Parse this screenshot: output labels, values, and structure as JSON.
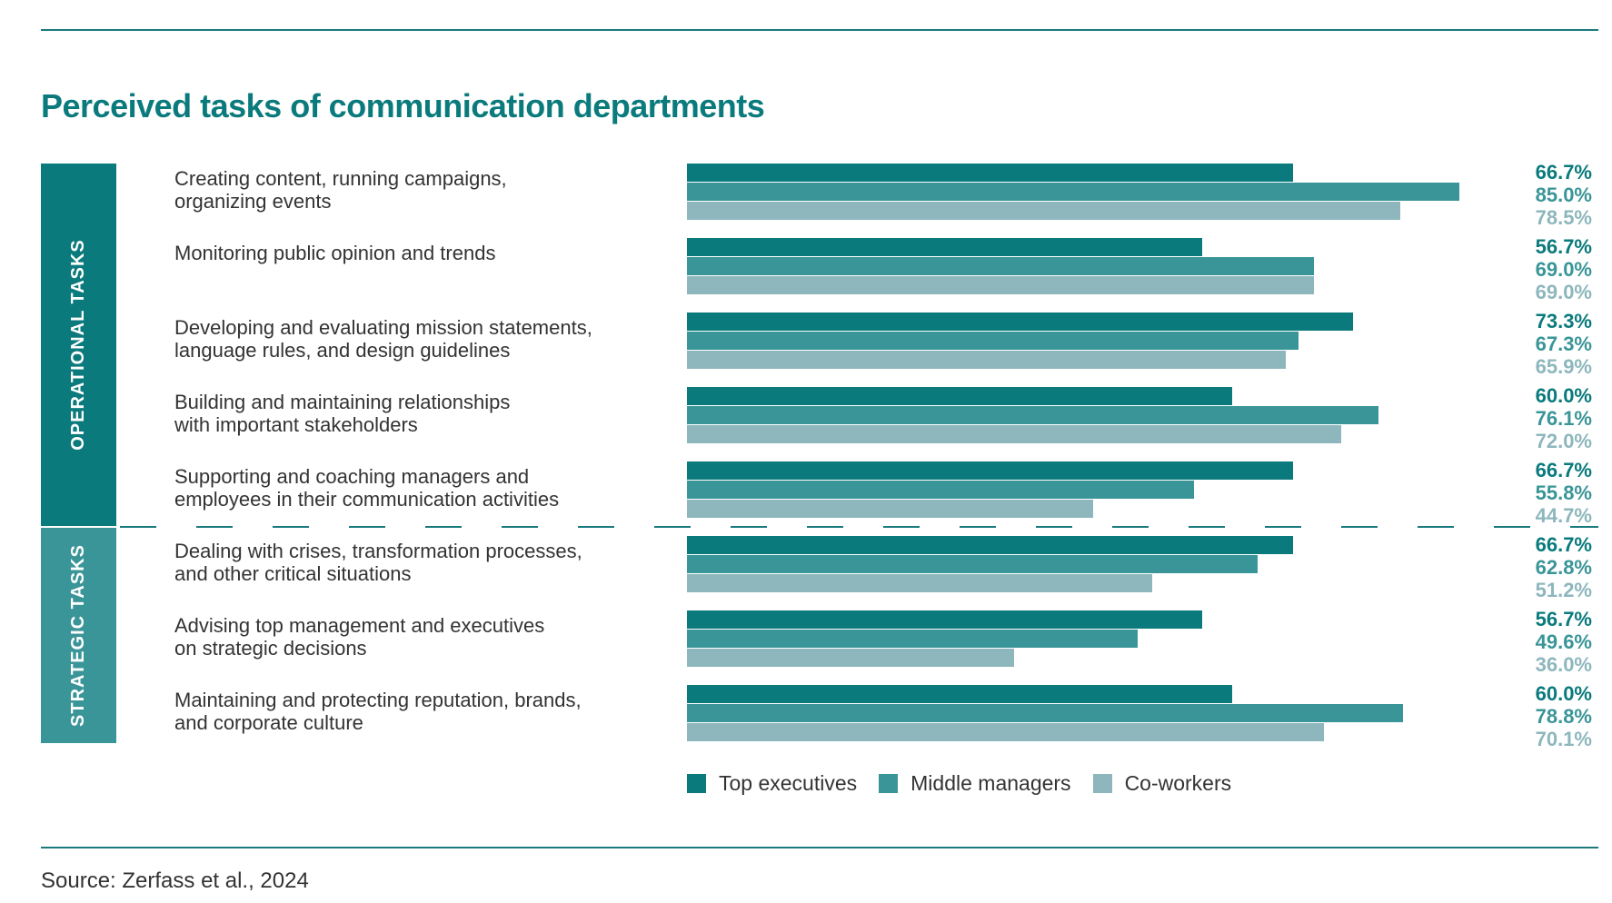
{
  "chart_data": {
    "type": "bar",
    "orientation": "horizontal",
    "title": "Perceived tasks of communication departments",
    "source": "Source: Zerfass et al., 2024",
    "sections": [
      {
        "label": "OPERATIONAL TASKS",
        "categories": [
          0,
          1,
          2,
          3,
          4
        ],
        "color": "#0a7a7c"
      },
      {
        "label": "STRATEGIC TASKS",
        "categories": [
          5,
          6,
          7
        ],
        "color": "#3a9598"
      }
    ],
    "categories": [
      "Creating content, running campaigns,\norganizing events",
      "Monitoring public opinion and trends",
      "Developing and evaluating mission statements,\nlanguage rules, and design guidelines",
      "Building and maintaining relationships\nwith important stakeholders",
      "Supporting and coaching managers and\nemployees in their communication activities",
      "Dealing with crises, transformation processes,\nand other critical situations",
      "Advising top management and executives\non strategic decisions",
      "Maintaining and protecting reputation, brands,\nand corporate culture"
    ],
    "series": [
      {
        "name": "Top executives",
        "color": "#0a7a7c",
        "label_color": "#0a7a7c",
        "values": [
          66.7,
          56.7,
          73.3,
          60.0,
          66.7,
          66.7,
          56.7,
          60.0
        ],
        "labels": [
          "66.7%",
          "56.7%",
          "73.3%",
          "60.0%",
          "66.7%",
          "66.7%",
          "56.7%",
          "60.0%"
        ]
      },
      {
        "name": "Middle managers",
        "color": "#3a9598",
        "label_color": "#3a9598",
        "values": [
          85.0,
          69.0,
          67.3,
          76.1,
          55.8,
          62.8,
          49.6,
          78.8
        ],
        "labels": [
          "85.0%",
          "69.0%",
          "67.3%",
          "76.1%",
          "55.8%",
          "62.8%",
          "49.6%",
          "78.8%"
        ]
      },
      {
        "name": "Co-workers",
        "color": "#8db7bd",
        "label_color": "#8db7bd",
        "values": [
          78.5,
          69.0,
          65.9,
          72.0,
          44.7,
          51.2,
          36.0,
          70.1
        ],
        "labels": [
          "78.5%",
          "69.0%",
          "65.9%",
          "72.0%",
          "44.7%",
          "51.2%",
          "36.0%",
          "70.1%"
        ]
      }
    ],
    "xlim": [
      0,
      100
    ],
    "legend_position": "bottom",
    "grid": false
  }
}
